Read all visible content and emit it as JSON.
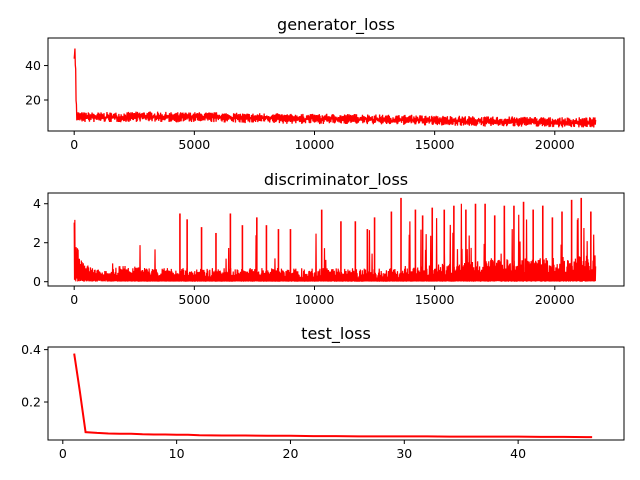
{
  "chart_data": [
    {
      "type": "line",
      "title": "generator_loss",
      "xlabel": "",
      "ylabel": "",
      "xlim": [
        -1090,
        22880
      ],
      "ylim": [
        2,
        56
      ],
      "xticks": [
        0,
        5000,
        10000,
        15000,
        20000
      ],
      "yticks": [
        20,
        40
      ],
      "grid": false,
      "color": "#ff0000",
      "series": [
        {
          "x": [
            0,
            20,
            50,
            80,
            100,
            150,
            200,
            300,
            500,
            1000,
            2000,
            3000,
            4000,
            5000,
            6000,
            7000,
            8000,
            9000,
            10000,
            11000,
            12000,
            13000,
            14000,
            15000,
            16000,
            17000,
            18000,
            19000,
            20000,
            21000,
            21700
          ],
          "y": [
            44,
            54,
            40,
            25,
            12,
            10,
            10.5,
            10,
            10,
            10,
            10,
            10.5,
            10,
            10,
            10,
            9.5,
            9.5,
            9.5,
            9,
            9,
            9,
            8.5,
            8.5,
            8,
            8,
            7.5,
            7.5,
            7.5,
            7,
            7,
            7
          ],
          "band_low": [
            40,
            48,
            34,
            12,
            7,
            7,
            7.5,
            7,
            7,
            7,
            7,
            7.5,
            7,
            7,
            7,
            6.5,
            6.5,
            6,
            6,
            6,
            6,
            5.5,
            5.5,
            5,
            5,
            4.5,
            4.5,
            4.5,
            4,
            4,
            4
          ],
          "band_high": [
            48,
            56,
            46,
            30,
            14,
            13,
            13.5,
            13,
            13,
            13,
            13,
            13.5,
            13,
            13,
            13,
            12.5,
            12.5,
            12,
            12,
            12,
            12,
            11.5,
            11.5,
            11,
            11,
            10.5,
            10.5,
            10.5,
            10,
            10,
            10
          ]
        }
      ]
    },
    {
      "type": "line",
      "title": "discriminator_loss",
      "xlabel": "",
      "ylabel": "",
      "xlim": [
        -1090,
        22880
      ],
      "ylim": [
        -0.22,
        4.55
      ],
      "xticks": [
        0,
        5000,
        10000,
        15000,
        20000
      ],
      "yticks": [
        0,
        2,
        4
      ],
      "grid": false,
      "color": "#ff0000",
      "series": [
        {
          "x": [
            0,
            50,
            100,
            200,
            300,
            500,
            800,
            1000,
            1500,
            2000,
            3000,
            4000,
            5000,
            6000,
            7000,
            8000,
            9000,
            10000,
            11000,
            12000,
            13000,
            14000,
            15000,
            16000,
            17000,
            18000,
            19000,
            20000,
            21000,
            21700
          ],
          "y": [
            2.0,
            1.6,
            1.2,
            0.9,
            0.7,
            0.5,
            0.4,
            0.35,
            0.3,
            0.25,
            0.2,
            0.2,
            0.2,
            0.2,
            0.2,
            0.2,
            0.2,
            0.2,
            0.2,
            0.2,
            0.2,
            0.2,
            0.25,
            0.3,
            0.3,
            0.35,
            0.35,
            0.35,
            0.4,
            0.4
          ],
          "spikes": [
            {
              "x": 4400,
              "y": 3.5
            },
            {
              "x": 4700,
              "y": 3.2
            },
            {
              "x": 5300,
              "y": 2.8
            },
            {
              "x": 5900,
              "y": 2.5
            },
            {
              "x": 6500,
              "y": 3.5
            },
            {
              "x": 7000,
              "y": 2.9
            },
            {
              "x": 7600,
              "y": 3.3
            },
            {
              "x": 8000,
              "y": 2.9
            },
            {
              "x": 8500,
              "y": 2.7
            },
            {
              "x": 9000,
              "y": 2.7
            },
            {
              "x": 10300,
              "y": 3.7
            },
            {
              "x": 11100,
              "y": 3.1
            },
            {
              "x": 11700,
              "y": 3.1
            },
            {
              "x": 12200,
              "y": 2.7
            },
            {
              "x": 12500,
              "y": 3.3
            },
            {
              "x": 13200,
              "y": 3.6
            },
            {
              "x": 13600,
              "y": 4.3
            },
            {
              "x": 14200,
              "y": 3.7
            },
            {
              "x": 14500,
              "y": 3.4
            },
            {
              "x": 14900,
              "y": 3.8
            },
            {
              "x": 15400,
              "y": 3.7
            },
            {
              "x": 15800,
              "y": 3.9
            },
            {
              "x": 16300,
              "y": 3.7
            },
            {
              "x": 16700,
              "y": 4.0
            },
            {
              "x": 17100,
              "y": 4.0
            },
            {
              "x": 17500,
              "y": 3.4
            },
            {
              "x": 17900,
              "y": 3.9
            },
            {
              "x": 18300,
              "y": 3.9
            },
            {
              "x": 18700,
              "y": 4.1
            },
            {
              "x": 19100,
              "y": 3.7
            },
            {
              "x": 19500,
              "y": 3.9
            },
            {
              "x": 19900,
              "y": 3.3
            },
            {
              "x": 20300,
              "y": 3.6
            },
            {
              "x": 20700,
              "y": 4.2
            },
            {
              "x": 21100,
              "y": 4.3
            },
            {
              "x": 21500,
              "y": 3.6
            }
          ]
        }
      ]
    },
    {
      "type": "line",
      "title": "test_loss",
      "xlabel": "",
      "ylabel": "",
      "xlim": [
        -1.3,
        49.3
      ],
      "ylim": [
        0.055,
        0.41
      ],
      "xticks": [
        0,
        10,
        20,
        30,
        40
      ],
      "yticks": [
        0.2,
        0.4
      ],
      "grid": false,
      "color": "#ff0000",
      "series": [
        {
          "x": [
            1,
            1.5,
            2,
            3,
            4,
            5,
            6,
            7,
            8,
            9,
            10,
            11,
            12,
            14,
            16,
            18,
            20,
            22,
            24,
            26,
            28,
            30,
            32,
            34,
            36,
            38,
            40,
            42,
            44,
            46,
            46.5
          ],
          "y": [
            0.385,
            0.24,
            0.085,
            0.082,
            0.08,
            0.079,
            0.079,
            0.077,
            0.076,
            0.076,
            0.075,
            0.075,
            0.073,
            0.072,
            0.072,
            0.071,
            0.071,
            0.07,
            0.07,
            0.069,
            0.069,
            0.069,
            0.069,
            0.068,
            0.068,
            0.068,
            0.068,
            0.067,
            0.067,
            0.066,
            0.066
          ]
        }
      ]
    }
  ]
}
